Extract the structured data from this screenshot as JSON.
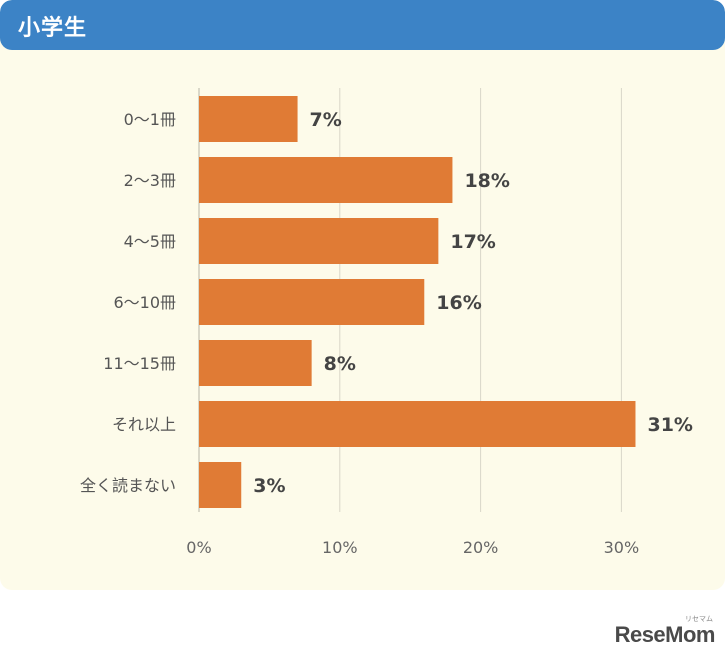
{
  "header": {
    "title": "小学生"
  },
  "brand": {
    "logo": "ReseMom",
    "logo_sub": "リセマム"
  },
  "colors": {
    "bar": "#e07b35",
    "header": "#3c83c6",
    "panel": "#fdfbea",
    "grid": "#d9d6c8"
  },
  "chart_data": {
    "type": "bar",
    "orientation": "horizontal",
    "categories": [
      "0〜1冊",
      "2〜3冊",
      "4〜5冊",
      "6〜10冊",
      "11〜15冊",
      "それ以上",
      "全く読まない"
    ],
    "values": [
      7,
      18,
      17,
      16,
      8,
      31,
      3
    ],
    "value_labels": [
      "7%",
      "18%",
      "17%",
      "16%",
      "8%",
      "31%",
      "3%"
    ],
    "xticks": [
      0,
      10,
      20,
      30
    ],
    "xtick_labels": [
      "0%",
      "10%",
      "20%",
      "30%"
    ],
    "xlim": [
      0,
      35
    ],
    "grid": true
  }
}
